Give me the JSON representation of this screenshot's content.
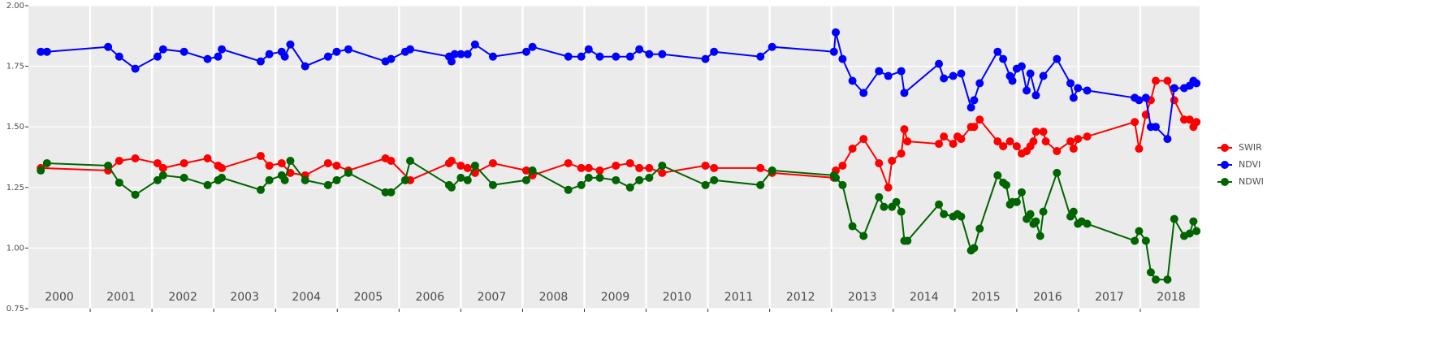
{
  "chart_data": {
    "type": "line",
    "xlim": [
      2000,
      2018.96
    ],
    "ylim": [
      0.75,
      2
    ],
    "yticks": [
      {
        "value": 0.75,
        "label": "0.75"
      },
      {
        "value": 1,
        "label": "1.00"
      },
      {
        "value": 1.25,
        "label": "1.25"
      },
      {
        "value": 1.5,
        "label": "1.50"
      },
      {
        "value": 1.75,
        "label": "1.75"
      },
      {
        "value": 2,
        "label": "2.00"
      }
    ],
    "xticks": [
      {
        "value": 2000.5,
        "label": "2000"
      },
      {
        "value": 2001.5,
        "label": "2001"
      },
      {
        "value": 2002.5,
        "label": "2002"
      },
      {
        "value": 2003.5,
        "label": "2003"
      },
      {
        "value": 2004.5,
        "label": "2004"
      },
      {
        "value": 2005.5,
        "label": "2005"
      },
      {
        "value": 2006.5,
        "label": "2006"
      },
      {
        "value": 2007.5,
        "label": "2007"
      },
      {
        "value": 2008.5,
        "label": "2008"
      },
      {
        "value": 2009.5,
        "label": "2009"
      },
      {
        "value": 2010.5,
        "label": "2010"
      },
      {
        "value": 2011.5,
        "label": "2011"
      },
      {
        "value": 2012.5,
        "label": "2012"
      },
      {
        "value": 2013.5,
        "label": "2013"
      },
      {
        "value": 2014.5,
        "label": "2014"
      },
      {
        "value": 2015.5,
        "label": "2015"
      },
      {
        "value": 2016.5,
        "label": "2016"
      },
      {
        "value": 2017.5,
        "label": "2017"
      },
      {
        "value": 2018.5,
        "label": "2018"
      }
    ],
    "xgrid": [
      2001,
      2002,
      2003,
      2004,
      2005,
      2006,
      2007,
      2008,
      2009,
      2010,
      2011,
      2012,
      2013,
      2014,
      2015,
      2016,
      2017,
      2018
    ],
    "grid": true,
    "legend": "right",
    "series": [
      {
        "name": "SWIR",
        "color": "#ff0000",
        "x": [
          2000.2,
          2001.29,
          2001.47,
          2001.73,
          2002.09,
          2002.18,
          2002.52,
          2002.9,
          2003.07,
          2003.13,
          2003.76,
          2003.9,
          2004.1,
          2004.24,
          2004.48,
          2004.85,
          2004.99,
          2005.18,
          2005.78,
          2005.87,
          2006.18,
          2006.81,
          2006.85,
          2007.0,
          2007.11,
          2007.23,
          2007.52,
          2008.06,
          2008.16,
          2008.74,
          2008.95,
          2009.07,
          2009.25,
          2009.51,
          2009.74,
          2009.89,
          2010.05,
          2010.26,
          2010.96,
          2011.1,
          2011.85,
          2012.04,
          2013.04,
          2013.07,
          2013.18,
          2013.34,
          2013.52,
          2013.77,
          2013.92,
          2013.98,
          2014.13,
          2014.18,
          2014.23,
          2014.74,
          2014.82,
          2014.97,
          2015.04,
          2015.1,
          2015.26,
          2015.31,
          2015.4,
          2015.69,
          2015.78,
          2015.89,
          2016.0,
          2016.08,
          2016.16,
          2016.22,
          2016.27,
          2016.31,
          2016.43,
          2016.47,
          2016.65,
          2016.87,
          2016.92,
          2016.99,
          2017.14,
          2017.91,
          2017.98,
          2018.09,
          2018.17,
          2018.25,
          2018.44,
          2018.55,
          2018.71,
          2018.8,
          2018.86,
          2018.91
        ],
        "values": [
          1.33,
          1.32,
          1.36,
          1.37,
          1.35,
          1.33,
          1.35,
          1.37,
          1.34,
          1.33,
          1.38,
          1.34,
          1.35,
          1.31,
          1.3,
          1.35,
          1.34,
          1.32,
          1.37,
          1.36,
          1.28,
          1.35,
          1.36,
          1.34,
          1.33,
          1.31,
          1.35,
          1.32,
          1.3,
          1.35,
          1.33,
          1.33,
          1.32,
          1.34,
          1.35,
          1.33,
          1.33,
          1.31,
          1.34,
          1.33,
          1.33,
          1.31,
          1.29,
          1.32,
          1.34,
          1.41,
          1.45,
          1.35,
          1.25,
          1.36,
          1.39,
          1.49,
          1.44,
          1.43,
          1.46,
          1.43,
          1.46,
          1.45,
          1.5,
          1.5,
          1.53,
          1.44,
          1.42,
          1.44,
          1.42,
          1.39,
          1.4,
          1.42,
          1.44,
          1.48,
          1.48,
          1.44,
          1.4,
          1.44,
          1.41,
          1.45,
          1.46,
          1.52,
          1.41,
          1.55,
          1.61,
          1.69,
          1.69,
          1.61,
          1.53,
          1.53,
          1.5,
          1.52
        ]
      },
      {
        "name": "NDVI",
        "color": "#0000ff",
        "x": [
          2000.2,
          2000.3,
          2001.29,
          2001.47,
          2001.73,
          2002.09,
          2002.18,
          2002.52,
          2002.9,
          2003.07,
          2003.13,
          2003.76,
          2003.9,
          2004.1,
          2004.15,
          2004.24,
          2004.48,
          2004.85,
          2004.99,
          2005.18,
          2005.78,
          2005.87,
          2006.1,
          2006.18,
          2006.81,
          2006.85,
          2006.9,
          2007.0,
          2007.11,
          2007.23,
          2007.52,
          2008.06,
          2008.16,
          2008.74,
          2008.95,
          2009.07,
          2009.25,
          2009.51,
          2009.74,
          2009.89,
          2010.05,
          2010.26,
          2010.96,
          2011.1,
          2011.85,
          2012.04,
          2013.04,
          2013.07,
          2013.18,
          2013.34,
          2013.52,
          2013.77,
          2013.92,
          2014.13,
          2014.18,
          2014.74,
          2014.82,
          2014.97,
          2015.1,
          2015.26,
          2015.31,
          2015.4,
          2015.69,
          2015.78,
          2015.89,
          2015.93,
          2016.0,
          2016.08,
          2016.16,
          2016.22,
          2016.31,
          2016.43,
          2016.65,
          2016.87,
          2016.92,
          2016.99,
          2017.14,
          2017.91,
          2017.98,
          2018.09,
          2018.17,
          2018.25,
          2018.44,
          2018.55,
          2018.71,
          2018.8,
          2018.86,
          2018.91
        ],
        "values": [
          1.81,
          1.81,
          1.83,
          1.79,
          1.74,
          1.79,
          1.82,
          1.81,
          1.78,
          1.79,
          1.82,
          1.77,
          1.8,
          1.81,
          1.79,
          1.84,
          1.75,
          1.79,
          1.81,
          1.82,
          1.77,
          1.78,
          1.81,
          1.82,
          1.79,
          1.77,
          1.8,
          1.8,
          1.8,
          1.84,
          1.79,
          1.81,
          1.83,
          1.79,
          1.79,
          1.82,
          1.79,
          1.79,
          1.79,
          1.82,
          1.8,
          1.8,
          1.78,
          1.81,
          1.79,
          1.83,
          1.81,
          1.89,
          1.78,
          1.69,
          1.64,
          1.73,
          1.71,
          1.73,
          1.64,
          1.76,
          1.7,
          1.71,
          1.72,
          1.58,
          1.61,
          1.68,
          1.81,
          1.78,
          1.71,
          1.69,
          1.74,
          1.75,
          1.65,
          1.72,
          1.63,
          1.71,
          1.78,
          1.68,
          1.62,
          1.66,
          1.65,
          1.62,
          1.61,
          1.62,
          1.5,
          1.5,
          1.45,
          1.66,
          1.66,
          1.67,
          1.69,
          1.68
        ]
      },
      {
        "name": "NDWI",
        "color": "#006400",
        "x": [
          2000.2,
          2000.3,
          2001.29,
          2001.47,
          2001.73,
          2002.09,
          2002.18,
          2002.52,
          2002.9,
          2003.07,
          2003.13,
          2003.76,
          2003.9,
          2004.1,
          2004.15,
          2004.24,
          2004.48,
          2004.85,
          2004.99,
          2005.18,
          2005.78,
          2005.87,
          2006.1,
          2006.18,
          2006.81,
          2006.85,
          2007.0,
          2007.11,
          2007.23,
          2007.52,
          2008.06,
          2008.16,
          2008.74,
          2008.95,
          2009.07,
          2009.25,
          2009.51,
          2009.74,
          2009.89,
          2010.05,
          2010.26,
          2010.96,
          2011.1,
          2011.85,
          2012.04,
          2013.04,
          2013.07,
          2013.18,
          2013.34,
          2013.52,
          2013.77,
          2013.85,
          2013.98,
          2014.05,
          2014.13,
          2014.18,
          2014.23,
          2014.74,
          2014.82,
          2014.97,
          2015.04,
          2015.1,
          2015.26,
          2015.31,
          2015.4,
          2015.69,
          2015.78,
          2015.83,
          2015.89,
          2015.93,
          2016.0,
          2016.08,
          2016.16,
          2016.22,
          2016.27,
          2016.31,
          2016.38,
          2016.43,
          2016.65,
          2016.87,
          2016.92,
          2016.99,
          2017.05,
          2017.14,
          2017.91,
          2017.98,
          2018.09,
          2018.17,
          2018.25,
          2018.44,
          2018.55,
          2018.71,
          2018.8,
          2018.86,
          2018.91
        ],
        "values": [
          1.32,
          1.35,
          1.34,
          1.27,
          1.22,
          1.28,
          1.3,
          1.29,
          1.26,
          1.28,
          1.29,
          1.24,
          1.28,
          1.3,
          1.28,
          1.36,
          1.28,
          1.26,
          1.28,
          1.31,
          1.23,
          1.23,
          1.28,
          1.36,
          1.26,
          1.25,
          1.29,
          1.28,
          1.34,
          1.26,
          1.28,
          1.32,
          1.24,
          1.26,
          1.29,
          1.29,
          1.28,
          1.25,
          1.28,
          1.29,
          1.34,
          1.26,
          1.28,
          1.26,
          1.32,
          1.3,
          1.29,
          1.26,
          1.09,
          1.05,
          1.21,
          1.17,
          1.17,
          1.19,
          1.15,
          1.03,
          1.03,
          1.18,
          1.14,
          1.13,
          1.14,
          1.13,
          0.99,
          1.0,
          1.08,
          1.3,
          1.27,
          1.26,
          1.18,
          1.19,
          1.19,
          1.23,
          1.12,
          1.14,
          1.1,
          1.11,
          1.05,
          1.15,
          1.31,
          1.13,
          1.15,
          1.1,
          1.11,
          1.1,
          1.03,
          1.07,
          1.03,
          0.9,
          0.87,
          0.87,
          1.12,
          1.05,
          1.06,
          1.11,
          1.07
        ]
      }
    ]
  }
}
